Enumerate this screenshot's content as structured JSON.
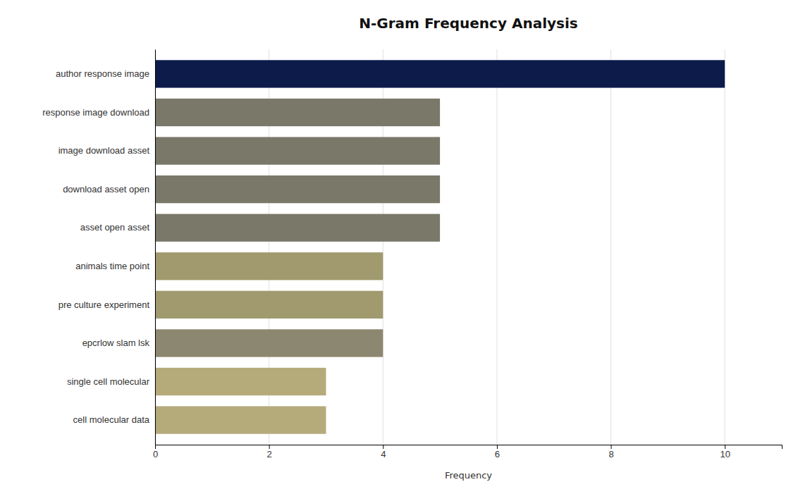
{
  "chart_data": {
    "type": "bar",
    "orientation": "horizontal",
    "title": "N-Gram Frequency Analysis",
    "xlabel": "Frequency",
    "categories": [
      "cell molecular data",
      "single cell molecular",
      "epcrlow slam lsk",
      "pre culture experiment",
      "animals time point",
      "asset open asset",
      "download asset open",
      "image download asset",
      "response image download",
      "author response image"
    ],
    "values": [
      3,
      3,
      4,
      4,
      4,
      5,
      5,
      5,
      5,
      10
    ],
    "colors": [
      "#b5aa7a",
      "#b5aa7a",
      "#8c8770",
      "#a09a6e",
      "#a09a6e",
      "#7a7868",
      "#7a7868",
      "#7a7868",
      "#7a7868",
      "#0d1b4b"
    ],
    "xlim": [
      0,
      11
    ],
    "xticks": [
      0,
      2,
      4,
      6,
      8,
      10
    ],
    "grid": true
  }
}
